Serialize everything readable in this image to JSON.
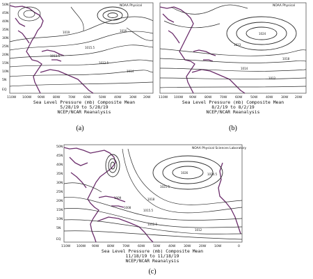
{
  "figure": {
    "panels": [
      {
        "id": "a",
        "label": "(a)",
        "source": "NOAA Physical",
        "caption_line1": "Sea Level Pressure (mb) Composite Mean",
        "caption_line2": "5/28/19 to 5/28/19",
        "caption_line3": "NCEP/NCAR Reanalysis",
        "lat_ticks": [
          "50N",
          "45N",
          "40N",
          "35N",
          "30N",
          "25N",
          "20N",
          "15N",
          "10N",
          "5N",
          "EQ"
        ],
        "lon_ticks": [
          "110W",
          "100W",
          "90W",
          "80W",
          "70W",
          "60W",
          "50W",
          "40W",
          "30W",
          "20W"
        ],
        "contour_labels": [
          "1019",
          "1015.5",
          "1012.5",
          "1016",
          "1013.5",
          "1014"
        ]
      },
      {
        "id": "b",
        "label": "(b)",
        "source": "NOAA Physical",
        "caption_line1": "Sea Level Pressure (mb) Composite Mean",
        "caption_line2": "8/2/19 to 8/2/19",
        "caption_line3": "NCEP/NCAR Reanalysis",
        "lat_ticks": [],
        "lon_ticks": [
          "110W",
          "100W",
          "90W",
          "80W",
          "70W",
          "60W",
          "50W",
          "40W",
          "30W",
          "20W"
        ],
        "contour_labels": [
          "1024",
          "1023",
          "1018",
          "1014",
          "1012"
        ]
      },
      {
        "id": "c",
        "label": "(c)",
        "source": "NOAA Physical Sciences Laboratory",
        "caption_line1": "Sea Level Pressure (mb) Composite Mean",
        "caption_line2": "11/18/19 to 11/18/19",
        "caption_line3": "NCEP/NCAR Reanalysis",
        "lat_ticks": [
          "50N",
          "45N",
          "40N",
          "35N",
          "30N",
          "25N",
          "20N",
          "15N",
          "10N",
          "5N",
          "EQ"
        ],
        "lon_ticks": [
          "110W",
          "100W",
          "90W",
          "80W",
          "70W",
          "60W",
          "50W",
          "40W",
          "30W",
          "20W",
          "10W",
          "0"
        ],
        "contour_labels": [
          "1024.5",
          "1026",
          "1021.5",
          "1018",
          "1015.5",
          "1012.5",
          "1009",
          "1008",
          "1012"
        ]
      }
    ]
  }
}
